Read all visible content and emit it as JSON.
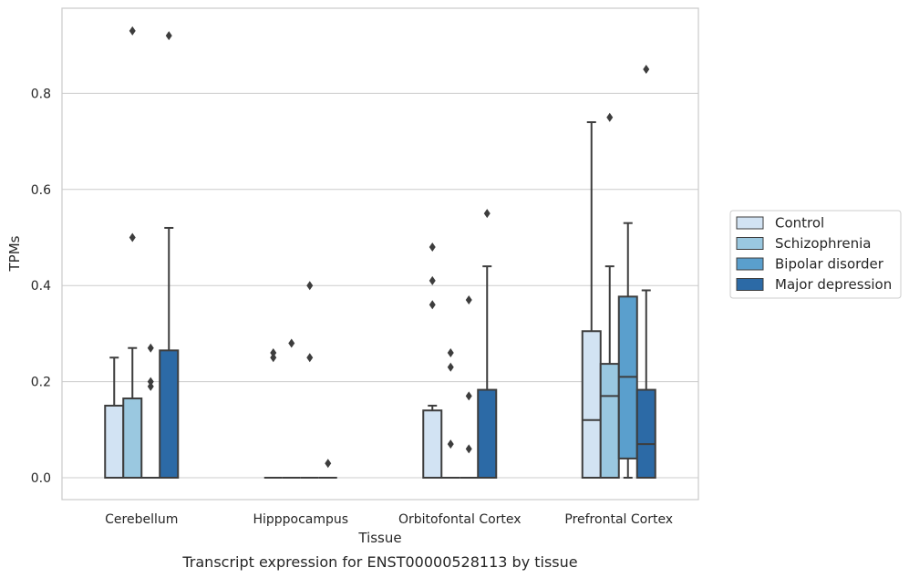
{
  "chart_data": {
    "type": "box",
    "title": "",
    "caption": "Transcript expression for ENST00000528113 by tissue",
    "xlabel": "Tissue",
    "ylabel": "TPMs",
    "ylim": [
      -0.045,
      0.975
    ],
    "yticks": [
      0.0,
      0.2,
      0.4,
      0.6,
      0.8
    ],
    "ytick_labels": [
      "0.0",
      "0.2",
      "0.4",
      "0.6",
      "0.8"
    ],
    "categories": [
      "Cerebellum",
      "Hipppocampus",
      "Orbitofontal Cortex",
      "Prefrontal Cortex"
    ],
    "grid": "horizontal",
    "legend_position": "right",
    "series": [
      {
        "name": "Control",
        "color": "#d2e3f3",
        "boxes": [
          {
            "q1": 0.0,
            "median": 0.0,
            "q3": 0.15,
            "whislo": 0.0,
            "whishi": 0.25,
            "fliers": []
          },
          {
            "q1": 0.0,
            "median": 0.0,
            "q3": 0.0,
            "whislo": 0.0,
            "whishi": 0.0,
            "fliers": [
              0.25,
              0.26
            ]
          },
          {
            "q1": 0.0,
            "median": 0.0,
            "q3": 0.14,
            "whislo": 0.0,
            "whishi": 0.15,
            "fliers": [
              0.36,
              0.41,
              0.48
            ]
          },
          {
            "q1": 0.0,
            "median": 0.12,
            "q3": 0.305,
            "whislo": 0.0,
            "whishi": 0.74,
            "fliers": []
          }
        ]
      },
      {
        "name": "Schizophrenia",
        "color": "#9ac8e0",
        "boxes": [
          {
            "q1": 0.0,
            "median": 0.0,
            "q3": 0.165,
            "whislo": 0.0,
            "whishi": 0.27,
            "fliers": [
              0.5,
              0.93
            ]
          },
          {
            "q1": 0.0,
            "median": 0.0,
            "q3": 0.0,
            "whislo": 0.0,
            "whishi": 0.0,
            "fliers": [
              0.28
            ]
          },
          {
            "q1": 0.0,
            "median": 0.0,
            "q3": 0.0,
            "whislo": 0.0,
            "whishi": 0.0,
            "fliers": [
              0.07,
              0.23,
              0.26
            ]
          },
          {
            "q1": 0.0,
            "median": 0.17,
            "q3": 0.237,
            "whislo": 0.0,
            "whishi": 0.44,
            "fliers": [
              0.75
            ]
          }
        ]
      },
      {
        "name": "Bipolar disorder",
        "color": "#5a9fcd",
        "boxes": [
          {
            "q1": 0.0,
            "median": 0.0,
            "q3": 0.0,
            "whislo": 0.0,
            "whishi": 0.0,
            "fliers": [
              0.19,
              0.2,
              0.27
            ]
          },
          {
            "q1": 0.0,
            "median": 0.0,
            "q3": 0.0,
            "whislo": 0.0,
            "whishi": 0.0,
            "fliers": [
              0.25,
              0.4
            ]
          },
          {
            "q1": 0.0,
            "median": 0.0,
            "q3": 0.0,
            "whislo": 0.0,
            "whishi": 0.0,
            "fliers": [
              0.06,
              0.17,
              0.37
            ]
          },
          {
            "q1": 0.04,
            "median": 0.21,
            "q3": 0.377,
            "whislo": 0.0,
            "whishi": 0.53,
            "fliers": []
          }
        ]
      },
      {
        "name": "Major depression",
        "color": "#2c6aa6",
        "boxes": [
          {
            "q1": 0.0,
            "median": 0.0,
            "q3": 0.265,
            "whislo": 0.0,
            "whishi": 0.52,
            "fliers": [
              0.92
            ]
          },
          {
            "q1": 0.0,
            "median": 0.0,
            "q3": 0.0,
            "whislo": 0.0,
            "whishi": 0.0,
            "fliers": [
              0.03
            ]
          },
          {
            "q1": 0.0,
            "median": 0.0,
            "q3": 0.183,
            "whislo": 0.0,
            "whishi": 0.44,
            "fliers": [
              0.55
            ]
          },
          {
            "q1": 0.0,
            "median": 0.07,
            "q3": 0.183,
            "whislo": 0.0,
            "whishi": 0.39,
            "fliers": [
              0.85
            ]
          }
        ]
      }
    ]
  }
}
